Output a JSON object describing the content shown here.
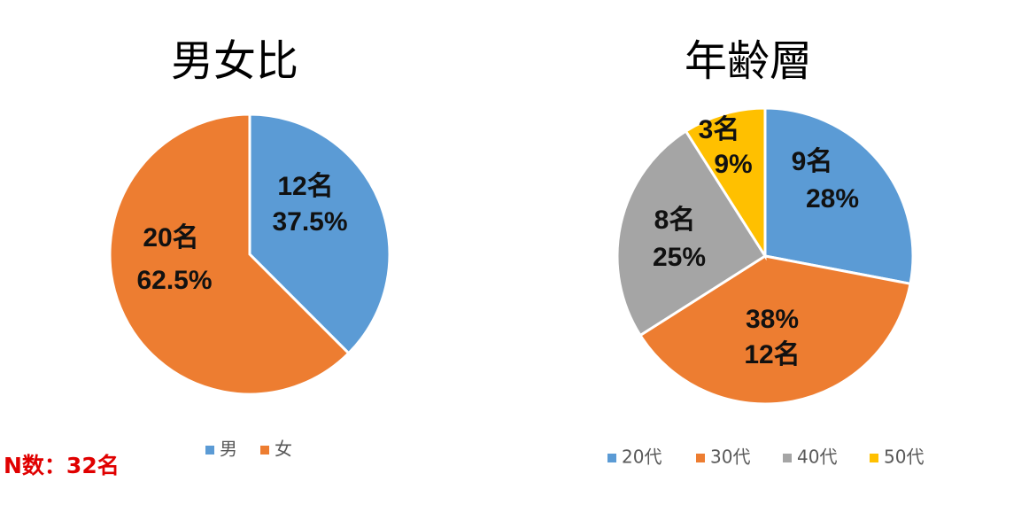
{
  "chart_data": [
    {
      "type": "pie",
      "title": "男女比",
      "categories": [
        "男",
        "女"
      ],
      "values": [
        37.5,
        62.5
      ],
      "value_labels": [
        "37.5%",
        "62.5%"
      ],
      "counts": [
        12,
        20
      ],
      "count_labels": [
        "12名",
        "20名"
      ],
      "colors": [
        "#5b9bd5",
        "#ed7d31"
      ],
      "legend": "bottom"
    },
    {
      "type": "pie",
      "title": "年齢層",
      "categories": [
        "20代",
        "30代",
        "40代",
        "50代"
      ],
      "values": [
        28,
        38,
        25,
        9
      ],
      "value_labels": [
        "28%",
        "38%",
        "25%",
        "9%"
      ],
      "counts": [
        9,
        12,
        8,
        3
      ],
      "count_labels": [
        "9名",
        "12名",
        "8名",
        "3名"
      ],
      "colors": [
        "#5b9bd5",
        "#ed7d31",
        "#a5a5a5",
        "#ffc000"
      ],
      "legend": "bottom"
    }
  ],
  "note": "N数：32名"
}
